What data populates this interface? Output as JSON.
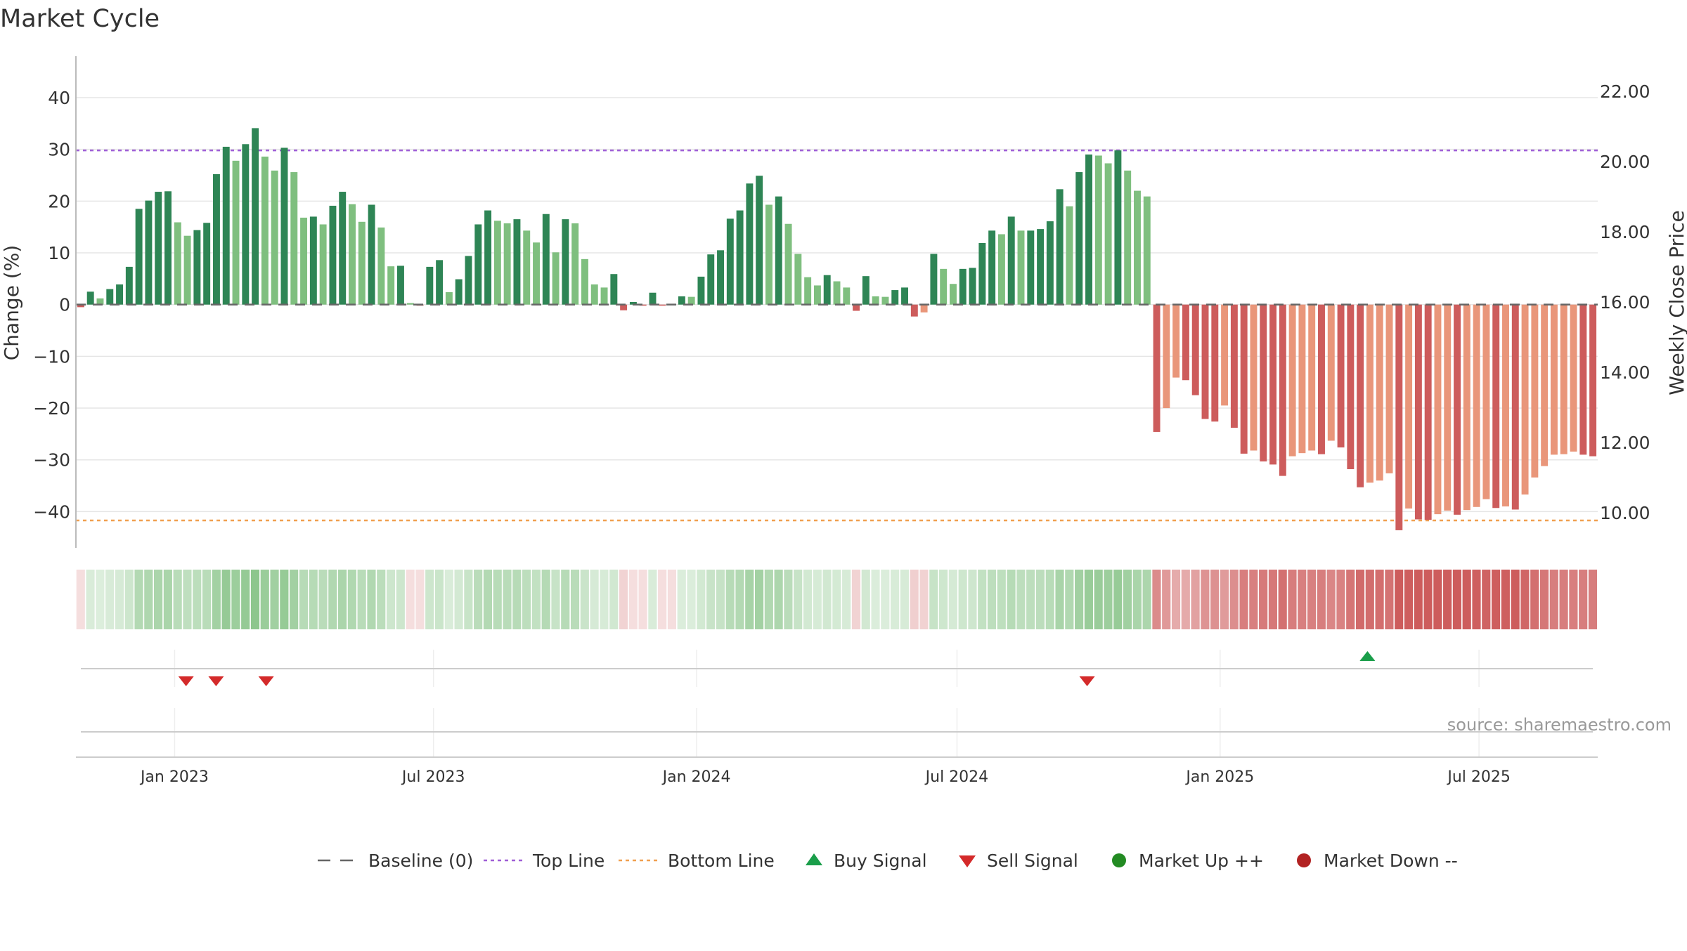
{
  "chart_data": {
    "type": "bar",
    "title": "Market Cycle",
    "ylabel_left": "Change (%)",
    "ylabel_right": "Weekly Close Price",
    "ylim_left": [
      -47,
      48
    ],
    "ylim_right": [
      9.0,
      23.0
    ],
    "yticks_left": [
      "40",
      "30",
      "20",
      "10",
      "0",
      "−10",
      "−20",
      "−30",
      "−40"
    ],
    "yticks_left_values": [
      40,
      30,
      20,
      10,
      0,
      -10,
      -20,
      -30,
      -40
    ],
    "yticks_right": [
      "22.00",
      "20.00",
      "18.00",
      "16.00",
      "14.00",
      "12.00",
      "10.00"
    ],
    "yticks_right_values": [
      22,
      20,
      18,
      16,
      14,
      12,
      10
    ],
    "date_range": [
      "2022-10-24",
      "2025-09-22"
    ],
    "xtick_labels": [
      "Jan 2023",
      "Jul 2023",
      "Jan 2024",
      "Jul 2024",
      "Jan 2025",
      "Jul 2025"
    ],
    "xtick_dates": [
      "2023-01-01",
      "2023-07-01",
      "2024-01-01",
      "2024-07-01",
      "2025-01-01",
      "2025-07-01"
    ],
    "top_line": 29.8,
    "bottom_line": -41.7,
    "baseline": 0,
    "colors": {
      "up_strong": "#2e8555",
      "up_weak": "#7fbf7f",
      "down_strong": "#cd5c5c",
      "down_weak": "#e9967a",
      "top_line": "#9f5fd6",
      "bottom_line": "#f0a050",
      "baseline": "#666666",
      "buy": "#1a9e4a",
      "sell": "#d42a2a",
      "market_up": "#238b23",
      "market_down": "#b22222",
      "source": "#999999",
      "grid": "#e6e6e6"
    },
    "values": [
      -0.5,
      2.5,
      1.2,
      3.0,
      3.9,
      7.3,
      18.5,
      20.1,
      21.8,
      21.9,
      15.9,
      13.3,
      14.4,
      15.8,
      25.2,
      30.5,
      27.8,
      31.0,
      34.1,
      28.6,
      25.9,
      30.3,
      25.6,
      16.8,
      17.0,
      15.5,
      19.1,
      21.8,
      19.4,
      16.0,
      19.3,
      14.9,
      7.4,
      7.5,
      0.3,
      -0.2,
      7.3,
      8.6,
      2.4,
      4.9,
      9.4,
      15.5,
      18.2,
      16.2,
      15.7,
      16.5,
      14.3,
      12.0,
      17.5,
      10.1,
      16.5,
      15.7,
      8.8,
      3.9,
      3.3,
      5.9,
      -1.1,
      0.5,
      -0.2,
      2.3,
      -0.1,
      0.1,
      1.6,
      1.5,
      5.4,
      9.7,
      10.5,
      16.6,
      18.2,
      23.4,
      24.9,
      19.3,
      20.9,
      15.6,
      9.8,
      5.3,
      3.7,
      5.7,
      4.5,
      3.3,
      -1.2,
      5.5,
      1.6,
      1.5,
      2.8,
      3.3,
      -2.3,
      -1.5,
      9.8,
      6.9,
      4.0,
      6.9,
      7.1,
      11.9,
      14.3,
      13.6,
      17.0,
      14.3,
      14.3,
      14.6,
      16.1,
      22.3,
      19.0,
      25.6,
      29.0,
      28.8,
      27.3,
      29.8,
      25.9,
      22.0,
      20.9,
      -24.6,
      -20.0,
      -14.1,
      -14.6,
      -17.5,
      -22.1,
      -22.6,
      -19.5,
      -23.8,
      -28.8,
      -28.2,
      -30.3,
      -30.9,
      -33.1,
      -29.3,
      -28.7,
      -28.2,
      -28.9,
      -26.3,
      -27.6,
      -31.8,
      -35.3,
      -34.4,
      -34.0,
      -32.6,
      -43.6,
      -39.4,
      -41.5,
      -41.6,
      -40.5,
      -39.8,
      -40.6,
      -39.7,
      -39.1,
      -37.6,
      -39.3,
      -39.0,
      -39.6,
      -36.7,
      -33.4,
      -31.2,
      -29.0,
      -28.9,
      -28.4,
      -29.0,
      -29.3
    ],
    "signals": [
      {
        "type": "sell",
        "date": "2023-01-09"
      },
      {
        "type": "sell",
        "date": "2023-01-30"
      },
      {
        "type": "sell",
        "date": "2023-03-06"
      },
      {
        "type": "sell",
        "date": "2024-09-30"
      },
      {
        "type": "buy",
        "date": "2025-04-14"
      }
    ],
    "legend_position": "bottom-center",
    "legend": [
      {
        "key": "baseline",
        "label": "Baseline (0)"
      },
      {
        "key": "top_line",
        "label": "Top Line"
      },
      {
        "key": "bottom_line",
        "label": "Bottom Line"
      },
      {
        "key": "buy",
        "label": "Buy Signal"
      },
      {
        "key": "sell",
        "label": "Sell Signal"
      },
      {
        "key": "market_up",
        "label": "Market Up ++"
      },
      {
        "key": "market_down",
        "label": "Market Down --"
      }
    ],
    "source": "source: sharemaestro.com"
  }
}
